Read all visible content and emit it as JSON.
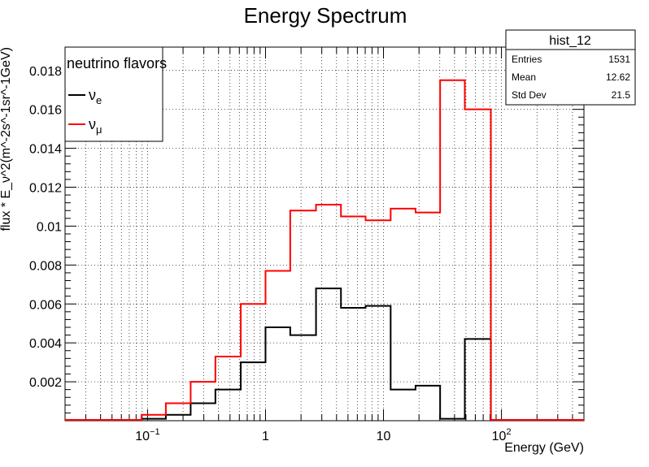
{
  "chart_data": {
    "type": "histogram",
    "title": "Energy Spectrum",
    "xlabel": "Energy (GeV)",
    "ylabel": "flux * E_ν^2(m^-2s^-1sr^-1GeV)",
    "x_scale": "log",
    "xlim": [
      0.02,
      500
    ],
    "ylim": [
      0,
      0.0192
    ],
    "grid": true,
    "x_ticks": [
      {
        "value": 0.1,
        "base": "10",
        "exp": "−1"
      },
      {
        "value": 1,
        "base": "1",
        "exp": ""
      },
      {
        "value": 10,
        "base": "10",
        "exp": ""
      },
      {
        "value": 100,
        "base": "10",
        "exp": "2"
      }
    ],
    "y_ticks": [
      {
        "value": 0.002,
        "label": "0.002"
      },
      {
        "value": 0.004,
        "label": "0.004"
      },
      {
        "value": 0.006,
        "label": "0.006"
      },
      {
        "value": 0.008,
        "label": "0.008"
      },
      {
        "value": 0.01,
        "label": "0.01"
      },
      {
        "value": 0.012,
        "label": "0.012"
      },
      {
        "value": 0.014,
        "label": "0.014"
      },
      {
        "value": 0.016,
        "label": "0.016"
      },
      {
        "value": 0.018,
        "label": "0.018"
      }
    ],
    "bin_edges": [
      0.02,
      0.089,
      0.143,
      0.232,
      0.376,
      0.617,
      1.0,
      1.62,
      2.68,
      4.36,
      7.05,
      11.5,
      18.7,
      30.2,
      48.9,
      81.3,
      500
    ],
    "series": [
      {
        "name": "ν_e",
        "color": "#000000",
        "values": [
          0,
          0.0001,
          0.0003,
          0.0009,
          0.0016,
          0.003,
          0.0048,
          0.0044,
          0.0068,
          0.0058,
          0.0059,
          0.0016,
          0.0018,
          0.0001,
          0.0042,
          0
        ]
      },
      {
        "name": "ν_μ",
        "color": "#ff0000",
        "values": [
          0,
          0.0003,
          0.0009,
          0.002,
          0.0033,
          0.006,
          0.0077,
          0.0108,
          0.0111,
          0.0105,
          0.0103,
          0.0109,
          0.0107,
          0.0175,
          0.016,
          0
        ]
      }
    ],
    "legend": {
      "placement": "top-left",
      "title": "neutrino flavors",
      "entries": [
        {
          "symbol": "ν",
          "sub": "e",
          "color": "#000000"
        },
        {
          "symbol": "ν",
          "sub": "μ",
          "color": "#ff0000"
        }
      ]
    },
    "stats_box": {
      "placement": "top-right",
      "title": "hist_12",
      "rows": [
        {
          "label": "Entries",
          "value": "1531"
        },
        {
          "label": "Mean",
          "value": "12.62"
        },
        {
          "label": "Std Dev",
          "value": "21.5"
        }
      ]
    }
  }
}
